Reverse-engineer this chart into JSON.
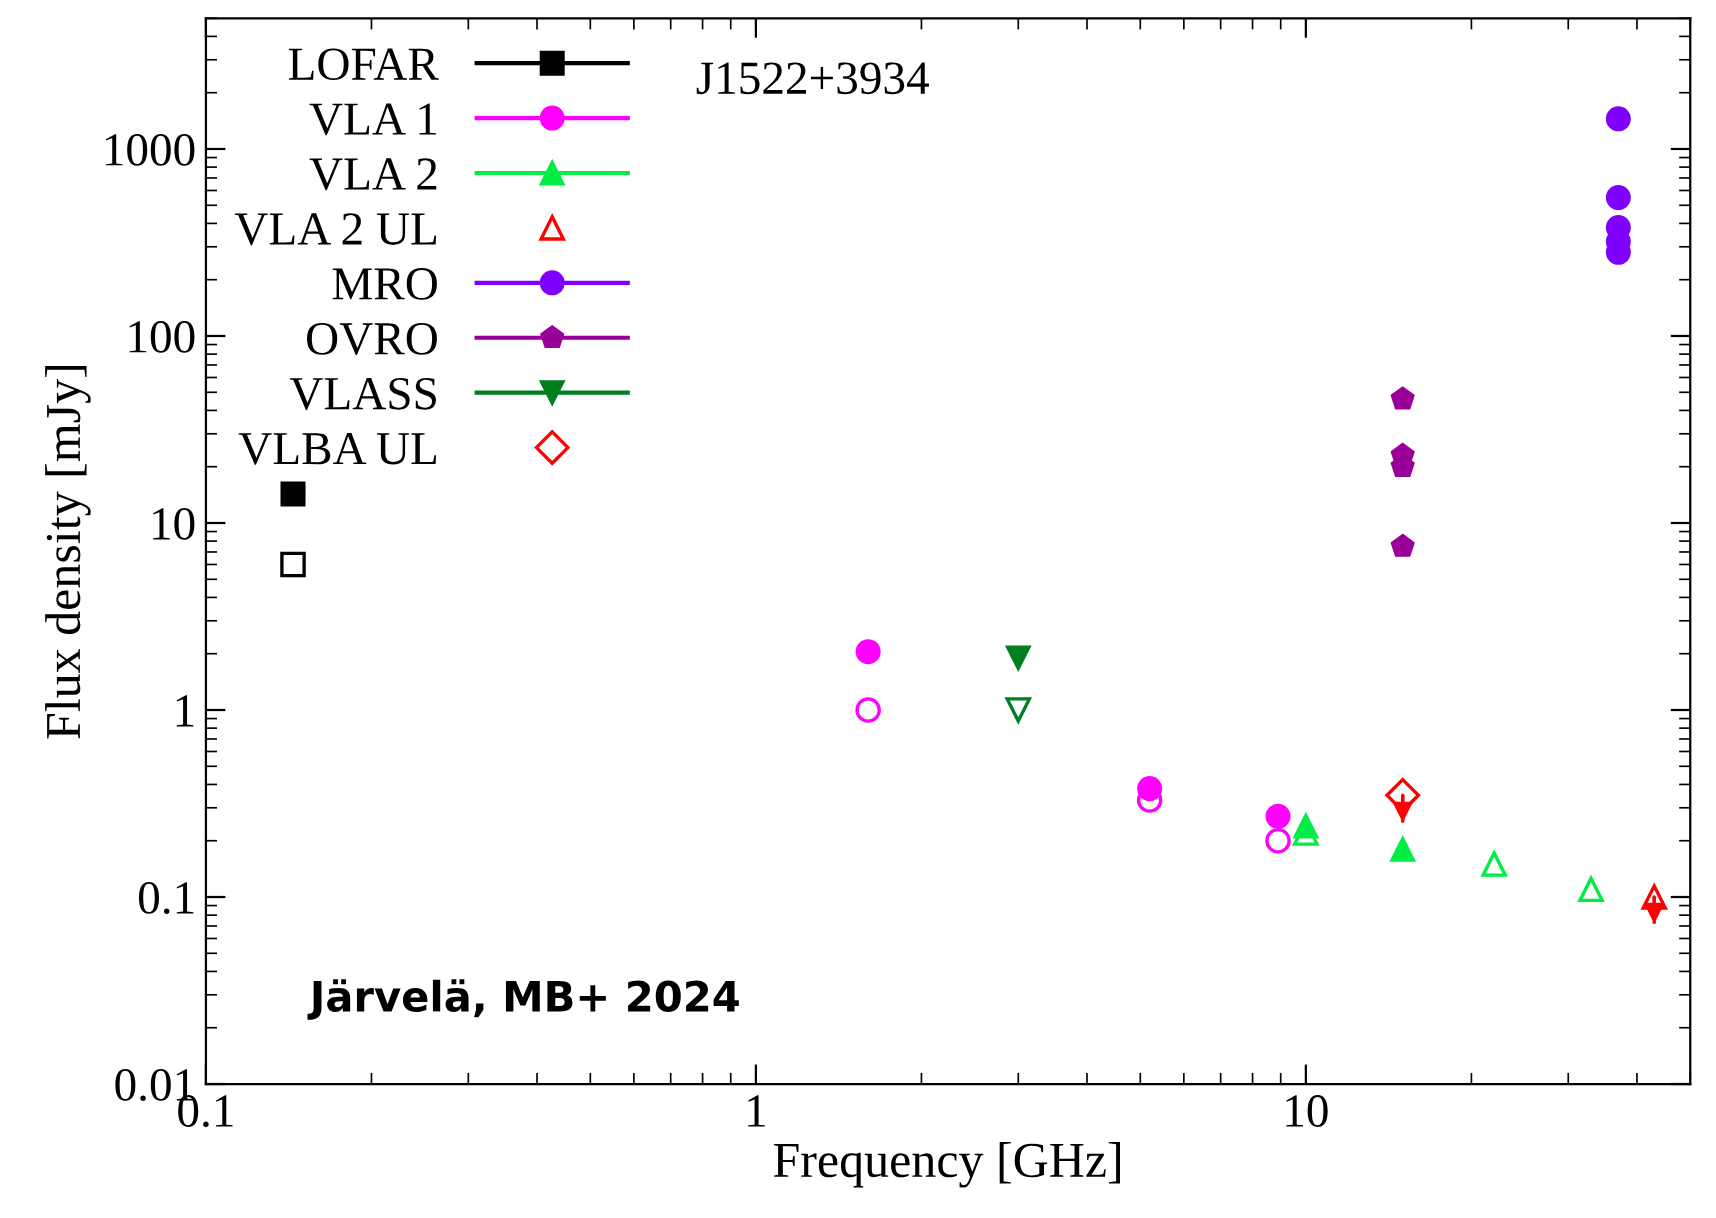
{
  "chart_data": {
    "type": "scatter",
    "title": "J1522+3934",
    "xlabel": "Frequency [GHz]",
    "ylabel": "Flux density [mJy]",
    "log": "xy",
    "xlim": [
      0.1,
      50
    ],
    "ylim": [
      0.01,
      5000
    ],
    "xticks": [
      0.1,
      1,
      10
    ],
    "yticks": [
      0.01,
      0.1,
      1,
      10,
      100,
      1000
    ],
    "grid": false,
    "legend": "top left",
    "annotations": [
      "Järvelä, MB+ 2024"
    ],
    "series": [
      {
        "name": "LOFAR",
        "color": "#000000",
        "marker": "square",
        "x": [
          0.144
        ],
        "values": [
          14.3
        ]
      },
      {
        "color": "#000000",
        "marker": "square",
        "x": [
          0.144
        ],
        "values": [
          6.0
        ]
      },
      {
        "name": "VLA 1",
        "color": "#ff00ff",
        "marker": "circle",
        "x": [
          1.6,
          5.2,
          8.9
        ],
        "values": [
          2.05,
          0.38,
          0.27
        ]
      },
      {
        "color": "#ff00ff",
        "marker": "circle",
        "x": [
          1.6,
          5.2,
          8.9
        ],
        "values": [
          1.0,
          0.33,
          0.2
        ]
      },
      {
        "name": "VLA 2",
        "color": "#00ee44",
        "marker": "triangle",
        "x": [
          10,
          15
        ],
        "values": [
          0.24,
          0.18
        ]
      },
      {
        "color": "#00ee44",
        "marker": "triangle",
        "x": [
          10,
          22,
          33
        ],
        "values": [
          0.22,
          0.15,
          0.11
        ]
      },
      {
        "name": "VLA 2 UL",
        "color": "#ff0000",
        "marker": "triangle",
        "x": [
          43
        ],
        "values": [
          0.1
        ],
        "errors": [
          [
            0.072,
            0.1
          ]
        ]
      },
      {
        "name": "MRO",
        "color": "#7f00ff",
        "marker": "circle",
        "x": [
          37,
          37,
          37,
          37,
          37
        ],
        "values": [
          1450,
          550,
          380,
          320,
          280
        ]
      },
      {
        "name": "OVRO",
        "color": "#990099",
        "x": [
          15,
          15,
          15,
          15
        ],
        "values": [
          46,
          23,
          20,
          7.5
        ]
      },
      {
        "name": "VLASS",
        "color": "#007f1f",
        "marker": "triangle_down",
        "x": [
          3.0
        ],
        "values": [
          1.9
        ]
      },
      {
        "color": "#007f1f",
        "marker": "triangle_down",
        "x": [
          3.0
        ],
        "values": [
          1.0
        ]
      },
      {
        "name": "VLBA UL",
        "color": "#ff0000",
        "marker": "diamond",
        "x": [
          15
        ],
        "values": [
          0.35
        ],
        "errors": [
          [
            0.25,
            0.35
          ]
        ]
      }
    ]
  }
}
